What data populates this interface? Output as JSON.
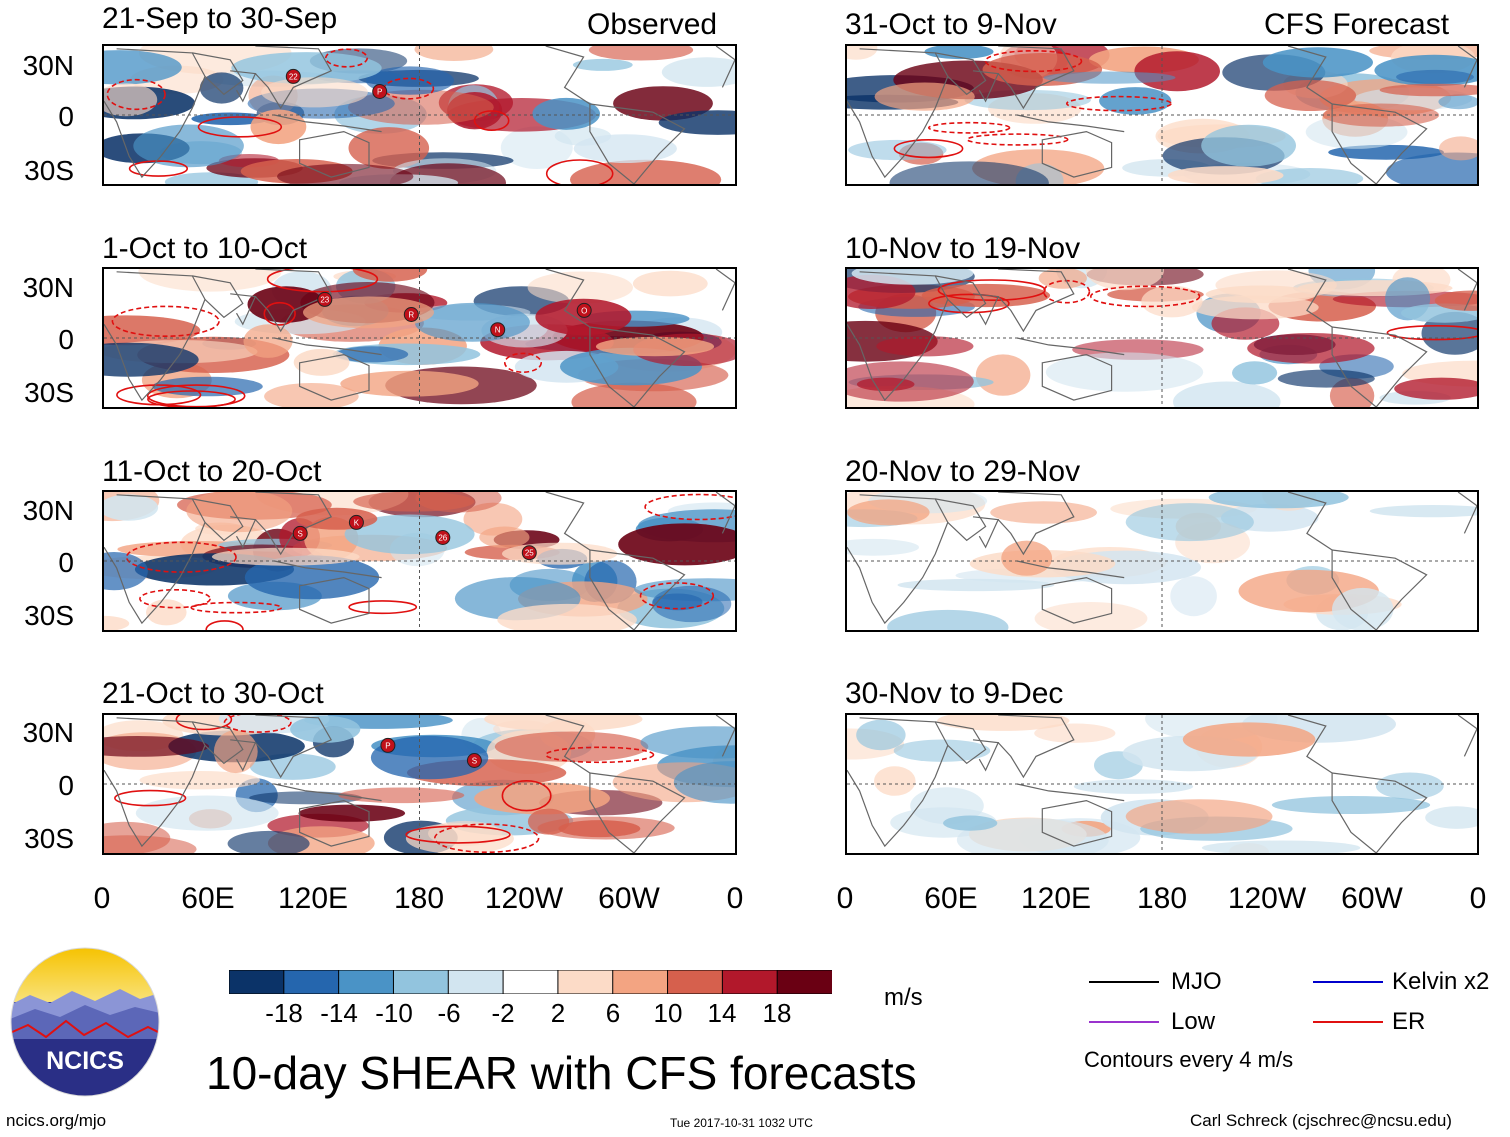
{
  "headers": {
    "left": "Observed",
    "right": "CFS Forecast"
  },
  "observed_panels": [
    {
      "title": "21-Sep to 30-Sep"
    },
    {
      "title": "1-Oct to 10-Oct"
    },
    {
      "title": "11-Oct to 20-Oct"
    },
    {
      "title": "21-Oct to 30-Oct"
    }
  ],
  "forecast_panels": [
    {
      "title": "31-Oct to 9-Nov"
    },
    {
      "title": "10-Nov to 19-Nov"
    },
    {
      "title": "20-Nov to 29-Nov"
    },
    {
      "title": "30-Nov to 9-Dec"
    }
  ],
  "y_ticks": [
    "30N",
    "0",
    "30S"
  ],
  "x_ticks": [
    "0",
    "60E",
    "120E",
    "180",
    "120W",
    "60W",
    "0"
  ],
  "colorbar": {
    "colors": [
      "#0b3368",
      "#2566ae",
      "#4a93c6",
      "#92c4de",
      "#d2e5f0",
      "#ffffff",
      "#fcdbc7",
      "#f3a482",
      "#d6604d",
      "#b2182b",
      "#6a0013"
    ],
    "labels": [
      "-18",
      "-14",
      "-10",
      "-6",
      "-2",
      "2",
      "6",
      "10",
      "14",
      "18"
    ],
    "units": "m/s"
  },
  "legend": {
    "items": [
      {
        "label": "MJO",
        "color": "#000000"
      },
      {
        "label": "Kelvin x2",
        "color": "#0000cc"
      },
      {
        "label": "Low",
        "color": "#9a32cd"
      },
      {
        "label": "ER",
        "color": "#e01010"
      }
    ],
    "note": "Contours every 4 m/s"
  },
  "logo_text": "NCICS",
  "main_title": "10-day SHEAR with CFS forecasts",
  "footer": {
    "url": "ncics.org/mjo",
    "timestamp": "Tue 2017-10-31 1032 UTC",
    "credit": "Carl Schreck (cjschrec@ncsu.edu)"
  },
  "storm_markers": [
    {
      "panel": 0,
      "labels": [
        "22",
        "P"
      ]
    },
    {
      "panel": 1,
      "labels": [
        "23",
        "R",
        "N",
        "O"
      ]
    },
    {
      "panel": 2,
      "labels": [
        "K",
        "26",
        "25",
        "S"
      ]
    },
    {
      "panel": 3,
      "labels": [
        "P",
        "S"
      ]
    }
  ]
}
